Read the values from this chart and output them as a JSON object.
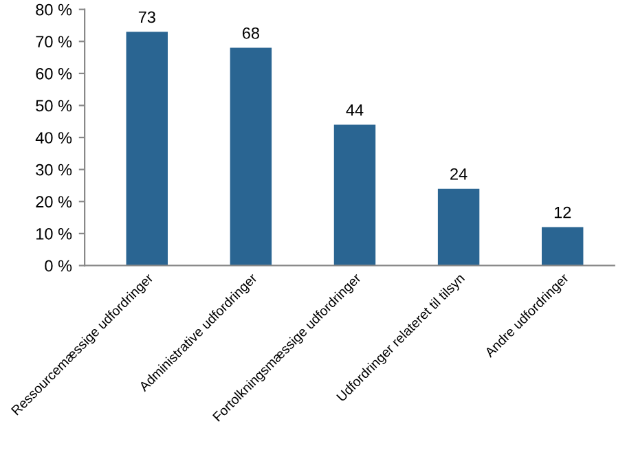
{
  "chart_data": {
    "type": "bar",
    "categories": [
      "Ressourcemæssige udfordringer",
      "Administrative udfordringer",
      "Fortolkningsmæssige udfordringer",
      "Udfordringer relateret til tilsyn",
      "Andre udfordringer"
    ],
    "values": [
      73,
      68,
      44,
      24,
      12
    ],
    "color": "#2a6592",
    "data_labels": true,
    "ylim": [
      0,
      80
    ],
    "yticks": [
      {
        "value": 0,
        "label": "0 %"
      },
      {
        "value": 10,
        "label": "10 %"
      },
      {
        "value": 20,
        "label": "20 %"
      },
      {
        "value": 30,
        "label": "30 %"
      },
      {
        "value": 40,
        "label": "40 %"
      },
      {
        "value": 50,
        "label": "50 %"
      },
      {
        "value": 60,
        "label": "60 %"
      },
      {
        "value": 70,
        "label": "70 %"
      },
      {
        "value": 80,
        "label": "80 %"
      }
    ],
    "grid": false
  }
}
